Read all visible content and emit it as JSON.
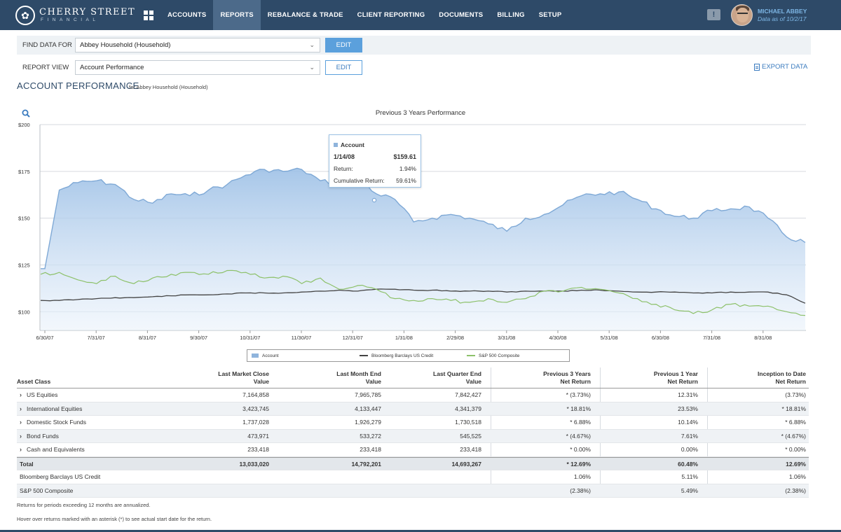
{
  "brand": {
    "name": "CHERRY STREET",
    "sub": "FINANCIAL"
  },
  "nav": {
    "items": [
      "ACCOUNTS",
      "REPORTS",
      "REBALANCE & TRADE",
      "CLIENT REPORTING",
      "DOCUMENTS",
      "BILLING",
      "SETUP"
    ],
    "active": "REPORTS"
  },
  "user": {
    "name": "MICHAEL ABBEY",
    "date": "Data as of 10/2/17"
  },
  "filters": {
    "find_label": "FIND DATA FOR",
    "find_value": "Abbey Household (Household)",
    "report_label": "REPORT VIEW",
    "report_value": "Account Performance",
    "edit_label": "EDIT",
    "export_label": "EXPORT DATA"
  },
  "page": {
    "title": "ACCOUNT PERFORMANCE",
    "subtitle": "for Abbey Household (Household)"
  },
  "colors": {
    "nav_bg": "#2e4a68",
    "accent": "#5ba0dc",
    "account": "#8fb4dc",
    "bloomberg": "#444444",
    "sp500": "#8dc16a"
  },
  "chart_data": {
    "type": "area",
    "title": "Previous 3 Years Performance",
    "ylim": [
      90,
      200
    ],
    "yticks": [
      "$200",
      "$175",
      "$150",
      "$125",
      "$100"
    ],
    "xticks": [
      "6/30/07",
      "7/31/07",
      "8/31/07",
      "9/30/07",
      "10/31/07",
      "11/30/07",
      "12/31/07",
      "1/31/08",
      "2/29/08",
      "3/31/08",
      "4/30/08",
      "5/31/08",
      "6/30/08",
      "7/31/08",
      "8/31/08"
    ],
    "grid": true,
    "legend_position": "bottom",
    "series": [
      {
        "name": "Account",
        "style": "area",
        "values": [
          123,
          165,
          169,
          170,
          168,
          160,
          158,
          163,
          162,
          165,
          168,
          173,
          176,
          175,
          176,
          170,
          168,
          172,
          163,
          160,
          148,
          150,
          152,
          150,
          147,
          143,
          150,
          152,
          157,
          162,
          163,
          164,
          160,
          155,
          151,
          150,
          154,
          155,
          156,
          150,
          140,
          137
        ]
      },
      {
        "name": "Bloomberg Barclays US Credit",
        "style": "line",
        "values": [
          106,
          106,
          106.5,
          107,
          107.5,
          107.5,
          108,
          108.5,
          109,
          109,
          109.5,
          110,
          110,
          110,
          110.5,
          111,
          111.5,
          111,
          112,
          112,
          111.5,
          111.5,
          111,
          111,
          111,
          110.5,
          111,
          111,
          111,
          111.5,
          111.5,
          111,
          110.5,
          110.5,
          110.5,
          110,
          110,
          110.5,
          110.5,
          110.5,
          109,
          104.5
        ]
      },
      {
        "name": "S&P 500 Composite",
        "style": "line",
        "values": [
          120,
          121,
          117,
          115,
          119,
          115,
          118,
          120,
          121,
          120,
          122,
          121,
          118,
          119,
          115,
          118,
          112,
          114,
          112,
          107,
          106,
          107,
          106,
          105,
          107,
          105,
          107,
          111,
          111,
          113,
          112,
          110,
          107,
          104,
          101,
          99,
          101,
          104,
          103,
          103,
          100,
          98
        ]
      }
    ],
    "tooltip": {
      "series": "Account",
      "date": "1/14/08",
      "value": "$159.61",
      "return_label": "Return:",
      "return": "1.94%",
      "cum_label": "Cumulative Return:",
      "cum": "59.61%"
    }
  },
  "table": {
    "headers": [
      [
        "Asset Class"
      ],
      [
        "Last Market Close",
        "Value"
      ],
      [
        "Last Month End",
        "Value"
      ],
      [
        "Last Quarter End",
        "Value"
      ],
      [
        "Previous 3 Years",
        "Net Return"
      ],
      [
        "Previous 1 Year",
        "Net Return"
      ],
      [
        "Inception to Date",
        "Net Return"
      ]
    ],
    "rows": [
      [
        "US Equities",
        "7,164,858",
        "7,965,785",
        "7,842,427",
        "* (3.73%)",
        "12.31%",
        "(3.73%)"
      ],
      [
        "International Equities",
        "3,423,745",
        "4,133,447",
        "4,341,379",
        "* 18.81%",
        "23.53%",
        "* 18.81%"
      ],
      [
        "Domestic Stock Funds",
        "1,737,028",
        "1,926,279",
        "1,730,518",
        "* 6.88%",
        "10.14%",
        "* 6.88%"
      ],
      [
        "Bond Funds",
        "473,971",
        "533,272",
        "545,525",
        "* (4.67%)",
        "7.61%",
        "* (4.67%)"
      ],
      [
        "Cash and Equivalents",
        "233,418",
        "233,418",
        "233,418",
        "* 0.00%",
        "0.00%",
        "* 0.00%"
      ]
    ],
    "total": [
      "Total",
      "13,033,020",
      "14,792,201",
      "14,693,267",
      "* 12.69%",
      "60.48%",
      "12.69%"
    ],
    "benchmarks": [
      [
        "Bloomberg Barclays US Credit",
        "",
        "",
        "",
        "1.06%",
        "5.11%",
        "1.06%"
      ],
      [
        "S&P 500 Composite",
        "",
        "",
        "",
        "(2.38%)",
        "5.49%",
        "(2.38%)"
      ]
    ]
  },
  "notes": [
    "Returns for periods exceeding 12 months are annualized.",
    "Hover over returns marked with an asterisk (*) to see actual start date for the return."
  ]
}
